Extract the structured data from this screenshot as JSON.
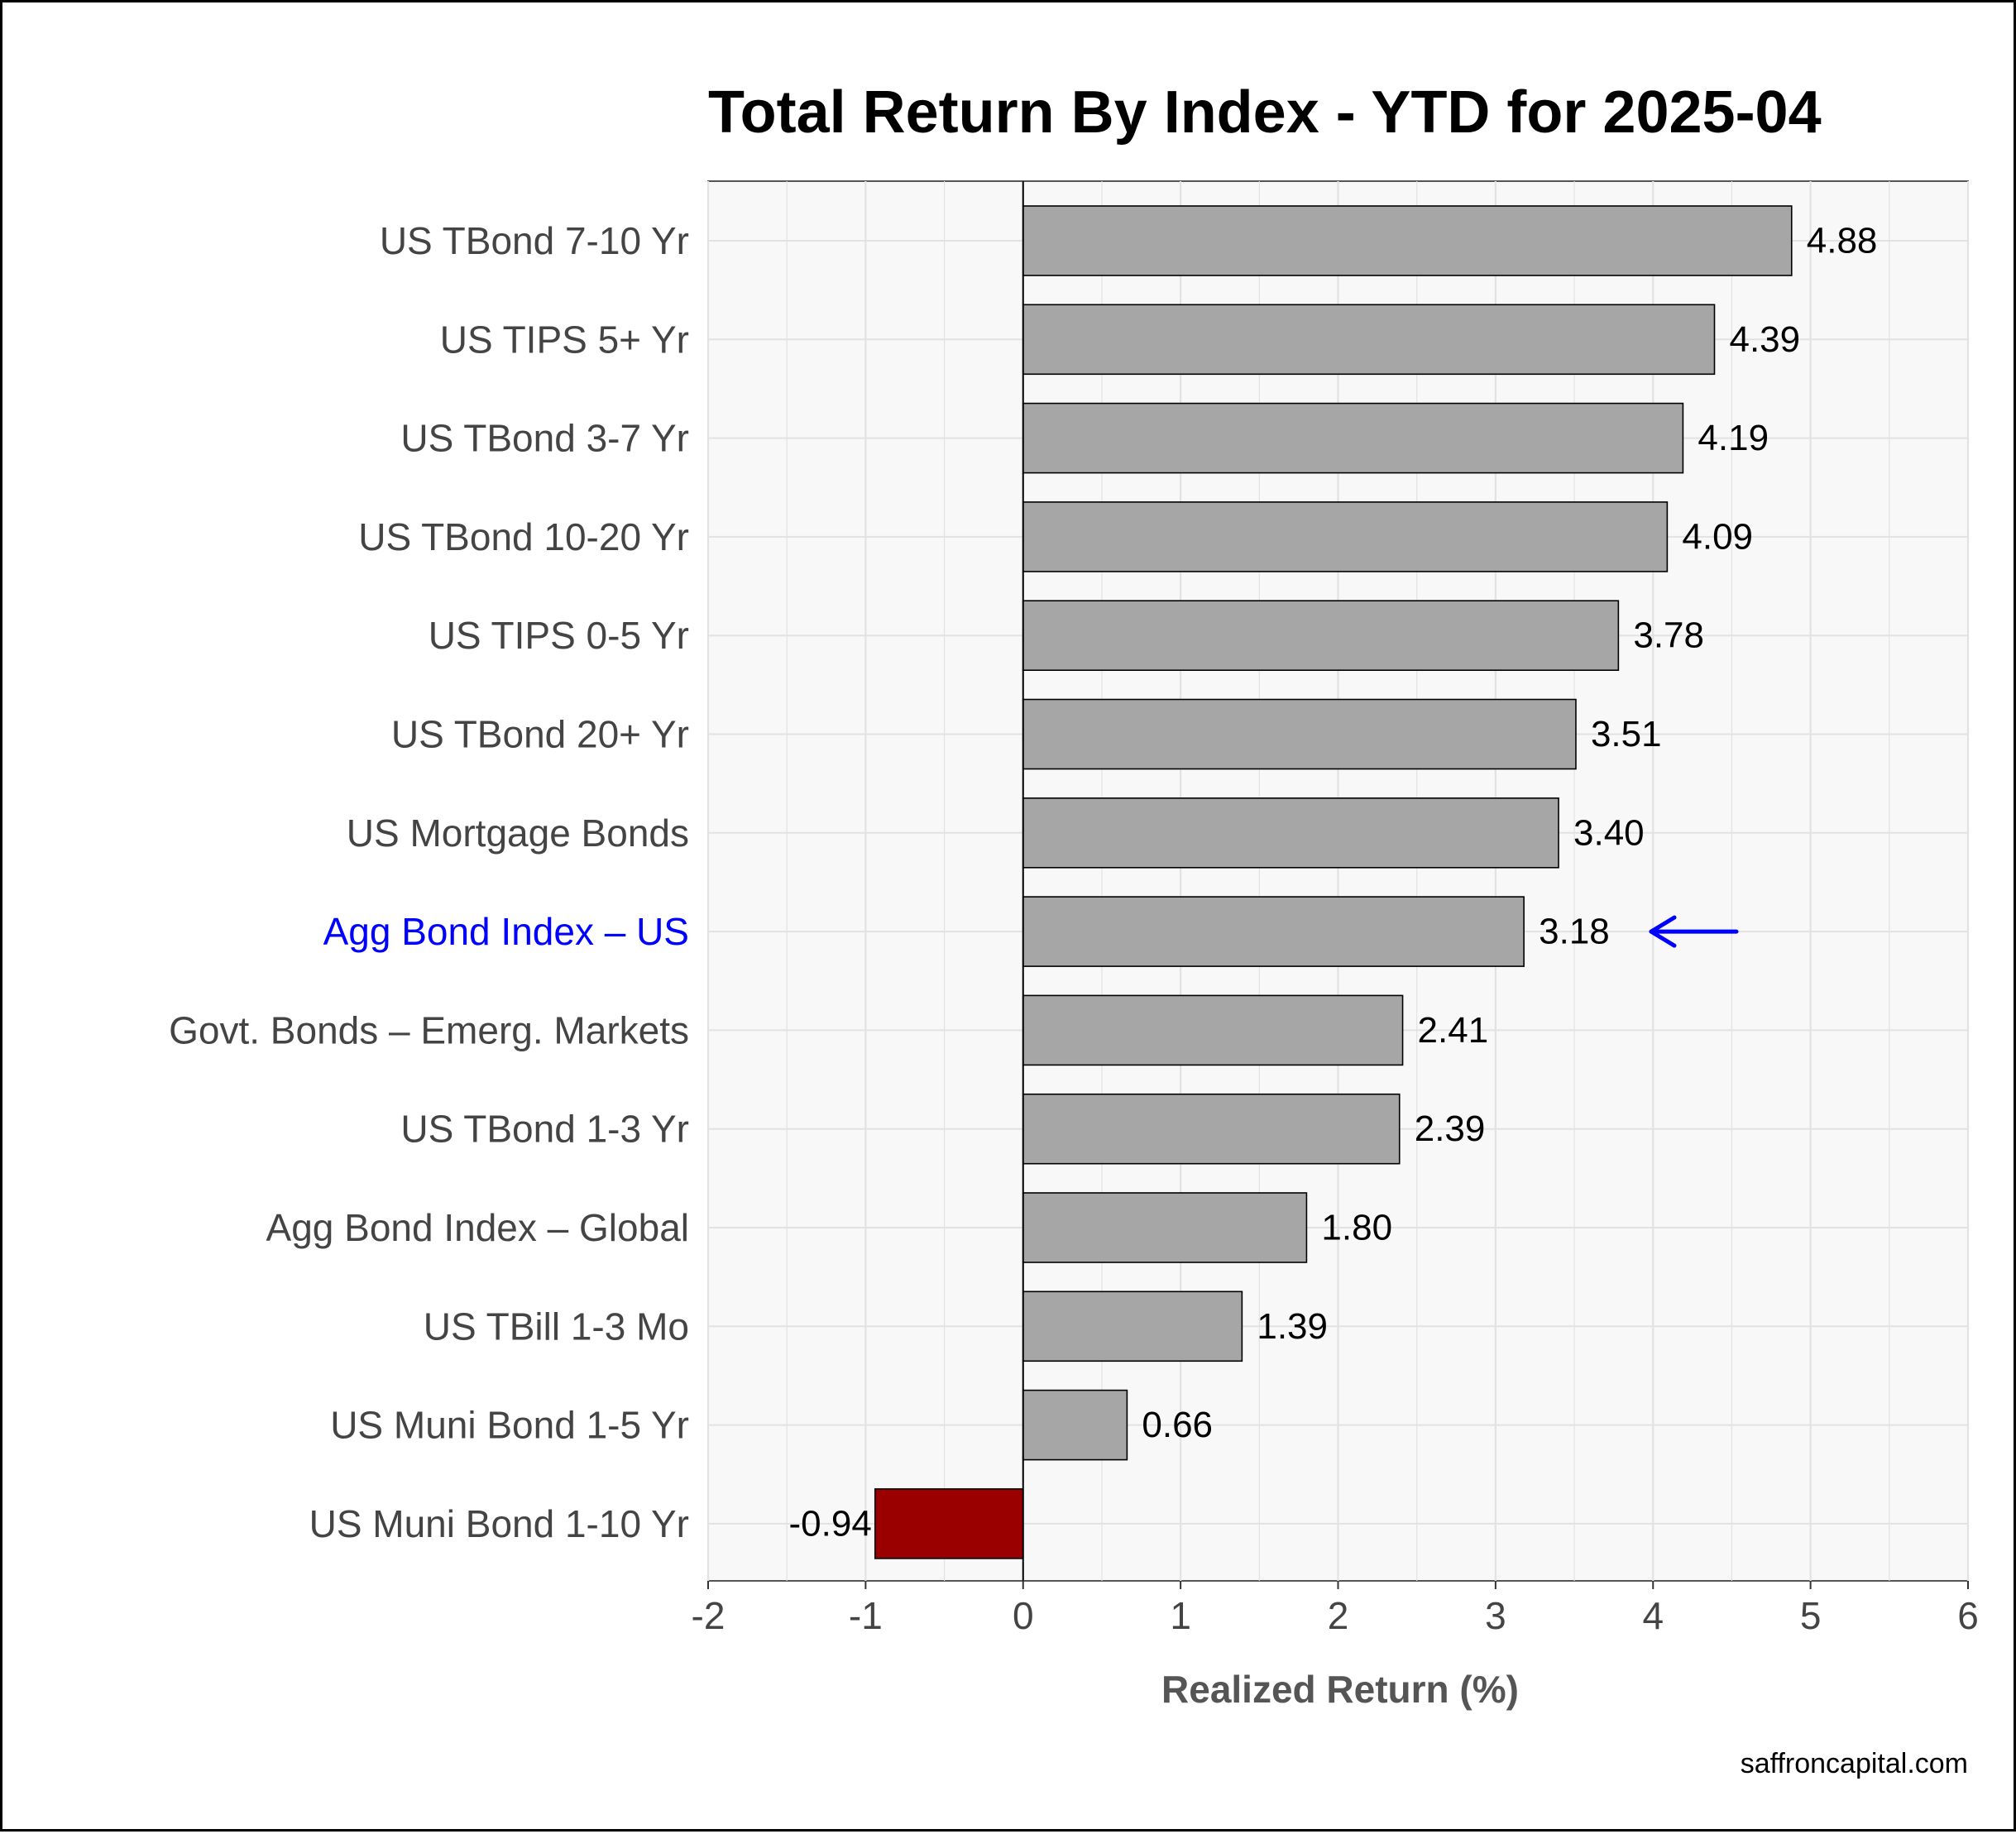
{
  "chart_data": {
    "type": "bar",
    "orientation": "horizontal",
    "title": "Total Return By Index - YTD for 2025-04",
    "xlabel": "Realized Return (%)",
    "ylabel": "",
    "xlim": [
      -2,
      6
    ],
    "x_ticks": [
      "-2",
      "-1",
      "0",
      "1",
      "2",
      "3",
      "4",
      "5",
      "6"
    ],
    "grid": true,
    "legend": "none",
    "caption": "saffroncapital.com",
    "categories": [
      "US TBond 7-10 Yr",
      "US TIPS 5+ Yr",
      "US TBond 3-7 Yr",
      "US TBond 10-20 Yr",
      "US TIPS 0-5 Yr",
      "US TBond 20+ Yr",
      "US Mortgage Bonds",
      "Agg Bond Index – US",
      "Govt. Bonds – Emerg. Markets",
      "US TBond 1-3 Yr",
      "Agg Bond Index – Global",
      "US TBill 1-3 Mo",
      "US Muni Bond 1-5 Yr",
      "US Muni Bond 1-10 Yr"
    ],
    "values": [
      4.88,
      4.39,
      4.19,
      4.09,
      3.78,
      3.51,
      3.4,
      3.18,
      2.41,
      2.39,
      1.8,
      1.39,
      0.66,
      -0.94
    ],
    "value_labels": [
      "4.88",
      "4.39",
      "4.19",
      "4.09",
      "3.78",
      "3.51",
      "3.40",
      "3.18",
      "2.41",
      "2.39",
      "1.80",
      "1.39",
      "0.66",
      "-0.94"
    ],
    "highlighted_category": "Agg Bond Index – US",
    "highlight_marker": "arrow-left",
    "colors": {
      "positive_bar": "#a6a6a6",
      "negative_bar": "#9b0000",
      "bar_outline": "#000000",
      "highlight_label": "#0000ff",
      "highlight_arrow": "#0000ff",
      "panel_background": "#f8f8f8",
      "grid": "#e2e2e2"
    }
  }
}
